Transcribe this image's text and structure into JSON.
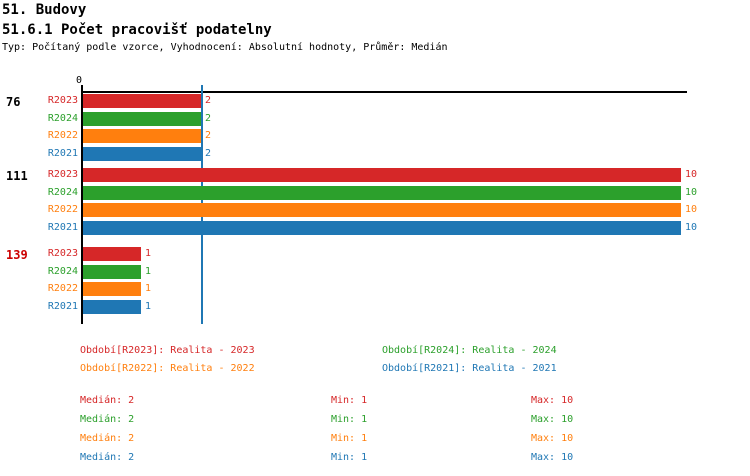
{
  "header": {
    "title1": "51. Budovy",
    "title2": "51.6.1 Počet pracovišť podatelny",
    "meta": "Typ: Počítaný podle vzorce, Vyhodnocení: Absolutní hodnoty, Průměr: Medián"
  },
  "colors": {
    "r2023": "#d62728",
    "r2024": "#2ca02c",
    "r2022": "#ff7f0e",
    "r2021": "#1f77b4",
    "highlight_group": "#cc0000",
    "group_label": "#000000",
    "axis": "#000000",
    "median_line": "#1f77b4"
  },
  "chart_data": {
    "type": "bar",
    "orientation": "horizontal",
    "title": "51.6.1 Počet pracovišť podatelny",
    "x_axis": {
      "zero_label": "0",
      "min": 0,
      "max": 10,
      "gridlines": false
    },
    "median_line_value": 2,
    "series": [
      "R2023",
      "R2024",
      "R2022",
      "R2021"
    ],
    "series_colors": [
      "#d62728",
      "#2ca02c",
      "#ff7f0e",
      "#1f77b4"
    ],
    "groups": [
      {
        "label": "76",
        "highlighted": false,
        "values": [
          2,
          2,
          2,
          2
        ]
      },
      {
        "label": "111",
        "highlighted": false,
        "values": [
          10,
          10,
          10,
          10
        ]
      },
      {
        "label": "139",
        "highlighted": true,
        "values": [
          1,
          1,
          1,
          1
        ]
      }
    ]
  },
  "legend": {
    "items": [
      {
        "text": "Období[R2023]: Realita - 2023",
        "color": "#d62728"
      },
      {
        "text": "Období[R2024]: Realita - 2024",
        "color": "#2ca02c"
      },
      {
        "text": "Období[R2022]: Realita - 2022",
        "color": "#ff7f0e"
      },
      {
        "text": "Období[R2021]: Realita - 2021",
        "color": "#1f77b4"
      }
    ]
  },
  "stats": {
    "rows": [
      {
        "color": "#d62728",
        "median": "Medián: 2",
        "min": "Min: 1",
        "max": "Max: 10"
      },
      {
        "color": "#2ca02c",
        "median": "Medián: 2",
        "min": "Min: 1",
        "max": "Max: 10"
      },
      {
        "color": "#ff7f0e",
        "median": "Medián: 2",
        "min": "Min: 1",
        "max": "Max: 10"
      },
      {
        "color": "#1f77b4",
        "median": "Medián: 2",
        "min": "Min: 1",
        "max": "Max: 10"
      }
    ]
  }
}
